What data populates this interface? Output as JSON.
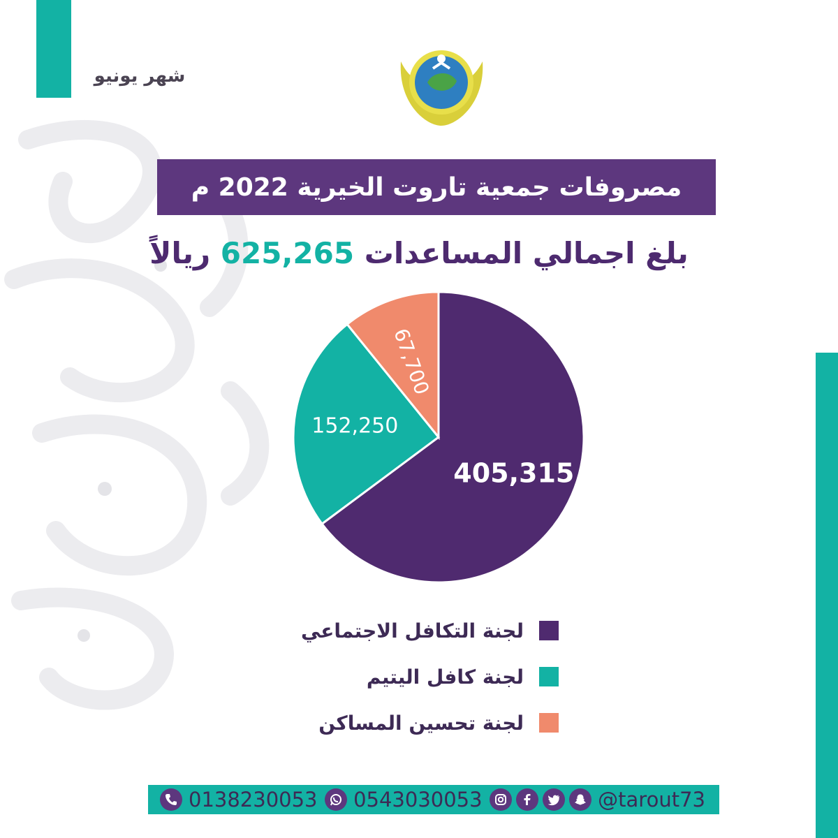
{
  "header": {
    "month_label": "شهر يونيو",
    "title": "مصروفات جمعية تاروت الخيرية 2022 م"
  },
  "summary": {
    "prefix": "بلغ اجمالي المساعدات",
    "amount": "625,265",
    "suffix": "ريالاً"
  },
  "chart_data": {
    "type": "pie",
    "categories": [
      "لجنة التكافل الاجتماعي",
      "لجنة كافل اليتيم",
      "لجنة تحسين المساكن"
    ],
    "values": [
      405315,
      152250,
      67700
    ],
    "value_labels": [
      "405,315",
      "152,250",
      "67,700"
    ],
    "colors": [
      "#4f2a6f",
      "#13b2a4",
      "#f08a6c"
    ],
    "legend_position": "bottom"
  },
  "footer": {
    "phone_1": "0138230053",
    "whatsapp": "0543030053",
    "handle": "@tarout73",
    "icons": [
      "phone-icon",
      "whatsapp-icon",
      "instagram-icon",
      "facebook-icon",
      "twitter-icon",
      "snapchat-icon"
    ]
  },
  "colors": {
    "accent_teal": "#13b2a4",
    "brand_purple": "#5d377e",
    "text_dark": "#3d2a55"
  }
}
